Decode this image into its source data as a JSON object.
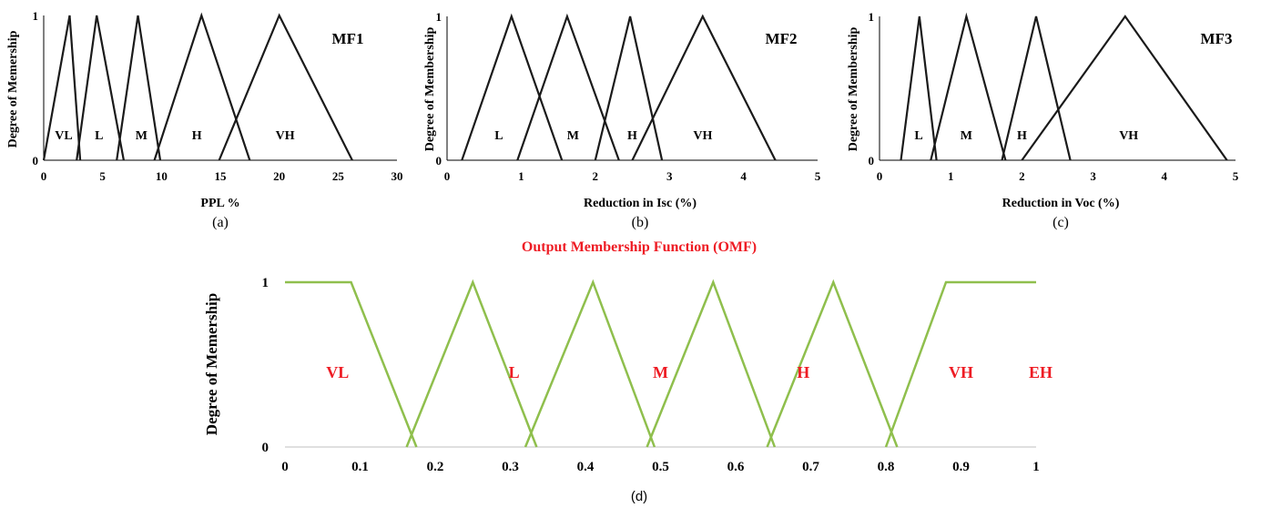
{
  "chart_data": [
    {
      "id": "a",
      "type": "line",
      "box_label": "MF1",
      "caption": "(a)",
      "xlabel": "PPL %",
      "ylabel": "Degree of Memership",
      "xlim": [
        0,
        30
      ],
      "ylim": [
        0,
        1
      ],
      "xticks": [
        0,
        5,
        10,
        15,
        20,
        25,
        30
      ],
      "yticks": [
        0,
        1
      ],
      "line_color": "#1a1a1a",
      "series": [
        {
          "label": "VL",
          "points": [
            [
              0,
              0
            ],
            [
              2.2,
              1
            ],
            [
              3.1,
              0
            ]
          ]
        },
        {
          "label": "L",
          "points": [
            [
              2.8,
              0
            ],
            [
              4.5,
              1
            ],
            [
              6.8,
              0
            ]
          ]
        },
        {
          "label": "M",
          "points": [
            [
              6.2,
              0
            ],
            [
              8,
              1
            ],
            [
              9.9,
              0
            ]
          ]
        },
        {
          "label": "H",
          "points": [
            [
              9.4,
              0
            ],
            [
              13.4,
              1
            ],
            [
              17.5,
              0
            ]
          ]
        },
        {
          "label": "VH",
          "points": [
            [
              14.9,
              0
            ],
            [
              20,
              1
            ],
            [
              26.2,
              0
            ]
          ]
        }
      ],
      "region_labels": [
        {
          "text": "VL",
          "x": 1.7
        },
        {
          "text": "L",
          "x": 4.7
        },
        {
          "text": "M",
          "x": 8.3
        },
        {
          "text": "H",
          "x": 13
        },
        {
          "text": "VH",
          "x": 20.5
        }
      ]
    },
    {
      "id": "b",
      "type": "line",
      "box_label": "MF2",
      "caption": "(b)",
      "xlabel": "Reduction in Isc (%)",
      "ylabel": "Degree of Membership",
      "xlim": [
        0,
        5
      ],
      "ylim": [
        0,
        1
      ],
      "xticks": [
        0,
        1,
        2,
        3,
        4,
        5
      ],
      "yticks": [
        0,
        1
      ],
      "line_color": "#1a1a1a",
      "series": [
        {
          "label": "L",
          "points": [
            [
              0.2,
              0
            ],
            [
              0.87,
              1
            ],
            [
              1.55,
              0
            ]
          ]
        },
        {
          "label": "M",
          "points": [
            [
              0.95,
              0
            ],
            [
              1.62,
              1
            ],
            [
              2.32,
              0
            ]
          ]
        },
        {
          "label": "H",
          "points": [
            [
              2.0,
              0
            ],
            [
              2.47,
              1
            ],
            [
              2.9,
              0
            ]
          ]
        },
        {
          "label": "VH",
          "points": [
            [
              2.5,
              0
            ],
            [
              3.45,
              1
            ],
            [
              4.43,
              0
            ]
          ]
        }
      ],
      "region_labels": [
        {
          "text": "L",
          "x": 0.7
        },
        {
          "text": "M",
          "x": 1.7
        },
        {
          "text": "H",
          "x": 2.5
        },
        {
          "text": "VH",
          "x": 3.45
        }
      ]
    },
    {
      "id": "c",
      "type": "line",
      "box_label": "MF3",
      "caption": "(c)",
      "xlabel": "Reduction in Voc (%)",
      "ylabel": "Degree of Membership",
      "xlim": [
        0,
        5
      ],
      "ylim": [
        0,
        1
      ],
      "xticks": [
        0,
        1,
        2,
        3,
        4,
        5
      ],
      "yticks": [
        0,
        1
      ],
      "line_color": "#1a1a1a",
      "series": [
        {
          "label": "L",
          "points": [
            [
              0.3,
              0
            ],
            [
              0.56,
              1
            ],
            [
              0.8,
              0
            ]
          ]
        },
        {
          "label": "M",
          "points": [
            [
              0.72,
              0
            ],
            [
              1.22,
              1
            ],
            [
              1.77,
              0
            ]
          ]
        },
        {
          "label": "H",
          "points": [
            [
              1.72,
              0
            ],
            [
              2.2,
              1
            ],
            [
              2.68,
              0
            ]
          ]
        },
        {
          "label": "VH",
          "points": [
            [
              2.0,
              0
            ],
            [
              3.45,
              1
            ],
            [
              4.88,
              0
            ]
          ]
        }
      ],
      "region_labels": [
        {
          "text": "L",
          "x": 0.55
        },
        {
          "text": "M",
          "x": 1.22
        },
        {
          "text": "H",
          "x": 2.0
        },
        {
          "text": "VH",
          "x": 3.5
        }
      ]
    },
    {
      "id": "d",
      "type": "line",
      "title": "Output Membership Function (OMF)",
      "caption": "(d)",
      "xlabel": "",
      "ylabel": "Degree of Memership",
      "xlim": [
        0,
        1
      ],
      "ylim": [
        0,
        1
      ],
      "xticks": [
        0,
        0.1,
        0.2,
        0.3,
        0.4,
        0.5,
        0.6,
        0.7,
        0.8,
        0.9,
        1
      ],
      "yticks": [
        0,
        1
      ],
      "line_color": "#8fbf4d",
      "label_color": "#ee1c24",
      "series": [
        {
          "label": "VL",
          "points": [
            [
              0,
              1
            ],
            [
              0.088,
              1
            ],
            [
              0.175,
              0
            ]
          ]
        },
        {
          "label": "L",
          "points": [
            [
              0.162,
              0
            ],
            [
              0.25,
              1
            ],
            [
              0.335,
              0
            ]
          ]
        },
        {
          "label": "M",
          "points": [
            [
              0.32,
              0
            ],
            [
              0.41,
              1
            ],
            [
              0.492,
              0
            ]
          ]
        },
        {
          "label": "H",
          "points": [
            [
              0.482,
              0
            ],
            [
              0.57,
              1
            ],
            [
              0.652,
              0
            ]
          ]
        },
        {
          "label": "VH",
          "points": [
            [
              0.642,
              0
            ],
            [
              0.73,
              1
            ],
            [
              0.815,
              0
            ]
          ]
        },
        {
          "label": "EH",
          "points": [
            [
              0.8,
              0
            ],
            [
              0.88,
              1
            ],
            [
              1,
              1
            ]
          ]
        }
      ],
      "region_labels": [
        {
          "text": "VL",
          "x": 0.07
        },
        {
          "text": "L",
          "x": 0.305
        },
        {
          "text": "M",
          "x": 0.5
        },
        {
          "text": "H",
          "x": 0.69
        },
        {
          "text": "VH",
          "x": 0.9
        },
        {
          "text": "EH",
          "x": 1.15
        }
      ]
    }
  ]
}
